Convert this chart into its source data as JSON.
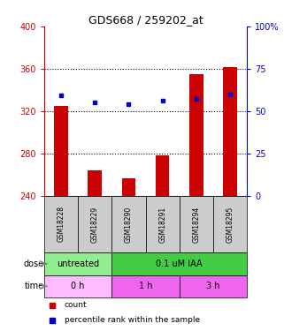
{
  "title": "GDS668 / 259202_at",
  "samples": [
    "GSM18228",
    "GSM18229",
    "GSM18290",
    "GSM18291",
    "GSM18294",
    "GSM18295"
  ],
  "bar_bottom": 240,
  "bar_tops": [
    325,
    264,
    257,
    278,
    355,
    362
  ],
  "percentile_values": [
    335,
    328,
    327,
    330,
    332,
    336
  ],
  "ylim_left": [
    240,
    400
  ],
  "ylim_right": [
    0,
    100
  ],
  "yticks_left": [
    240,
    280,
    320,
    360,
    400
  ],
  "yticks_right": [
    0,
    25,
    50,
    75,
    100
  ],
  "bar_color": "#cc0000",
  "dot_color": "#0000cc",
  "dose_groups": [
    {
      "label": "untreated",
      "start": 0,
      "end": 2,
      "color": "#90ee90"
    },
    {
      "label": "0.1 uM IAA",
      "start": 2,
      "end": 6,
      "color": "#44cc44"
    }
  ],
  "time_groups": [
    {
      "label": "0 h",
      "start": 0,
      "end": 2,
      "color": "#ffbbff"
    },
    {
      "label": "1 h",
      "start": 2,
      "end": 4,
      "color": "#ee66ee"
    },
    {
      "label": "3 h",
      "start": 4,
      "end": 6,
      "color": "#ee66ee"
    }
  ],
  "dose_label": "dose",
  "time_label": "time",
  "legend_count_label": "count",
  "legend_pct_label": "percentile rank within the sample",
  "left_axis_color": "#cc0000",
  "right_axis_color": "#0000cc",
  "tick_label_fontsize": 7,
  "title_fontsize": 9,
  "sample_box_color": "#cccccc",
  "gridline_yticks": [
    280,
    320,
    360
  ]
}
